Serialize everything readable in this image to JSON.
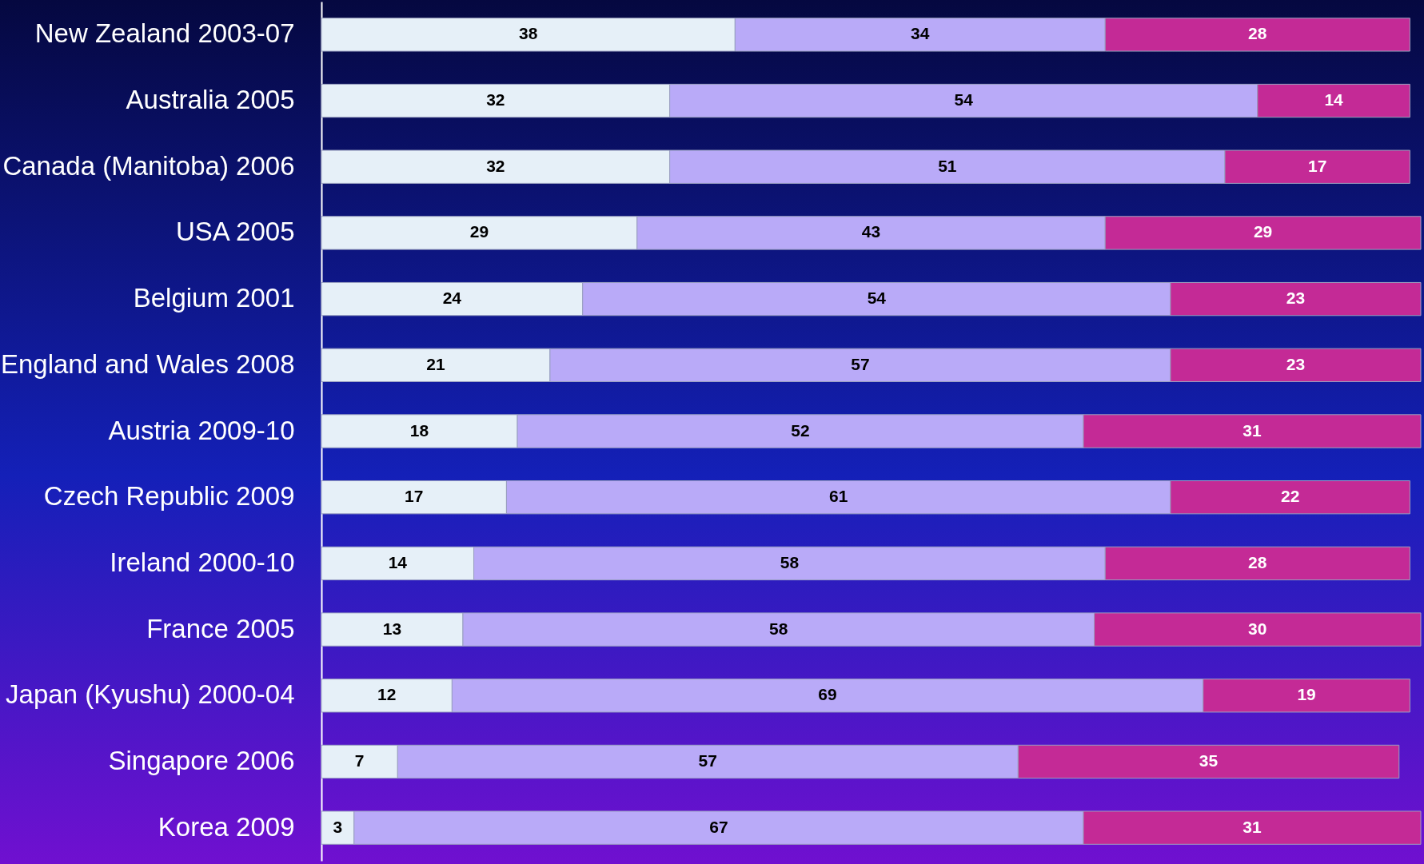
{
  "chart_data": {
    "type": "bar",
    "orientation": "horizontal",
    "stacked": true,
    "data_labels": true,
    "legend": false,
    "categories": [
      "New Zealand 2003-07",
      "Australia 2005",
      "Canada (Manitoba) 2006",
      "USA 2005",
      "Belgium 2001",
      "England and Wales 2008",
      "Austria 2009-10",
      "Czech Republic 2009",
      "Ireland 2000-10",
      "France 2005",
      "Japan (Kyushu) 2000-04",
      "Singapore 2006",
      "Korea 2009"
    ],
    "series": [
      {
        "color": "#e6f0f8",
        "values": [
          38,
          32,
          32,
          29,
          24,
          21,
          18,
          17,
          14,
          13,
          12,
          7,
          3
        ]
      },
      {
        "color": "#b9aaf8",
        "values": [
          34,
          54,
          51,
          43,
          54,
          57,
          52,
          61,
          58,
          58,
          69,
          57,
          67
        ]
      },
      {
        "color": "#c42a96",
        "values": [
          28,
          14,
          17,
          29,
          23,
          23,
          31,
          22,
          28,
          30,
          19,
          35,
          31
        ]
      }
    ]
  }
}
